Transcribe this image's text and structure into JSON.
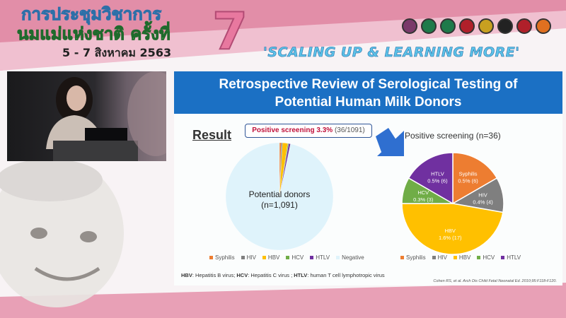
{
  "header": {
    "title_line1": "การประชุมวิชาการ",
    "title_line2": "นมแม่แห่งชาติ ครั้งที่",
    "edition": "7",
    "dates": "5 - 7 สิงหาคม 2563",
    "slogan": "'SCALING UP & LEARNING MORE'",
    "logo_colors": [
      "#7a3a6a",
      "#1e7a4a",
      "#1e7a4a",
      "#b0202a",
      "#c8a020",
      "#222222",
      "#b0202a",
      "#e07020"
    ]
  },
  "slide": {
    "title_line1": "Retrospective Review of Serological Testing of",
    "title_line2": "Potential Human Milk Donors",
    "result_label": "Result",
    "callout_bold": "Positive screening 3.3%",
    "callout_rest": "(36/1091)",
    "footnote_parts": [
      "HBV",
      ": Hepatitis B virus; ",
      "HCV",
      ": Hepatitis C virus ; ",
      "HTLV",
      ": human T cell lymphotropic virus"
    ],
    "reference": "Cohen RS, et al. Arch Dis Child Fetal Neonatal Ed. 2010;95:F118-F120."
  },
  "chart_data": [
    {
      "type": "pie",
      "center_label_line1": "Potential donors",
      "center_label_line2": "(n=1,091)",
      "categories": [
        "Syphilis",
        "HIV",
        "HBV",
        "HCV",
        "HTLV",
        "Negative"
      ],
      "values": [
        6,
        4,
        17,
        3,
        6,
        1055
      ],
      "colors": [
        "#ed7d31",
        "#7f7f7f",
        "#ffc000",
        "#70ad47",
        "#7030a0",
        "#dff3fb"
      ],
      "legend": "bottom"
    },
    {
      "type": "pie",
      "title": "Positive screening (n=36)",
      "categories": [
        "Syphilis",
        "HIV",
        "HBV",
        "HCV",
        "HTLV"
      ],
      "values": [
        6,
        4,
        17,
        3,
        6
      ],
      "labels": [
        "0.5% (6)",
        "0.4% (4)",
        "1.6% (17)",
        "0.3% (3)",
        "0.5% (6)"
      ],
      "colors": [
        "#ed7d31",
        "#7f7f7f",
        "#ffc000",
        "#70ad47",
        "#7030a0"
      ],
      "legend": "bottom"
    }
  ]
}
